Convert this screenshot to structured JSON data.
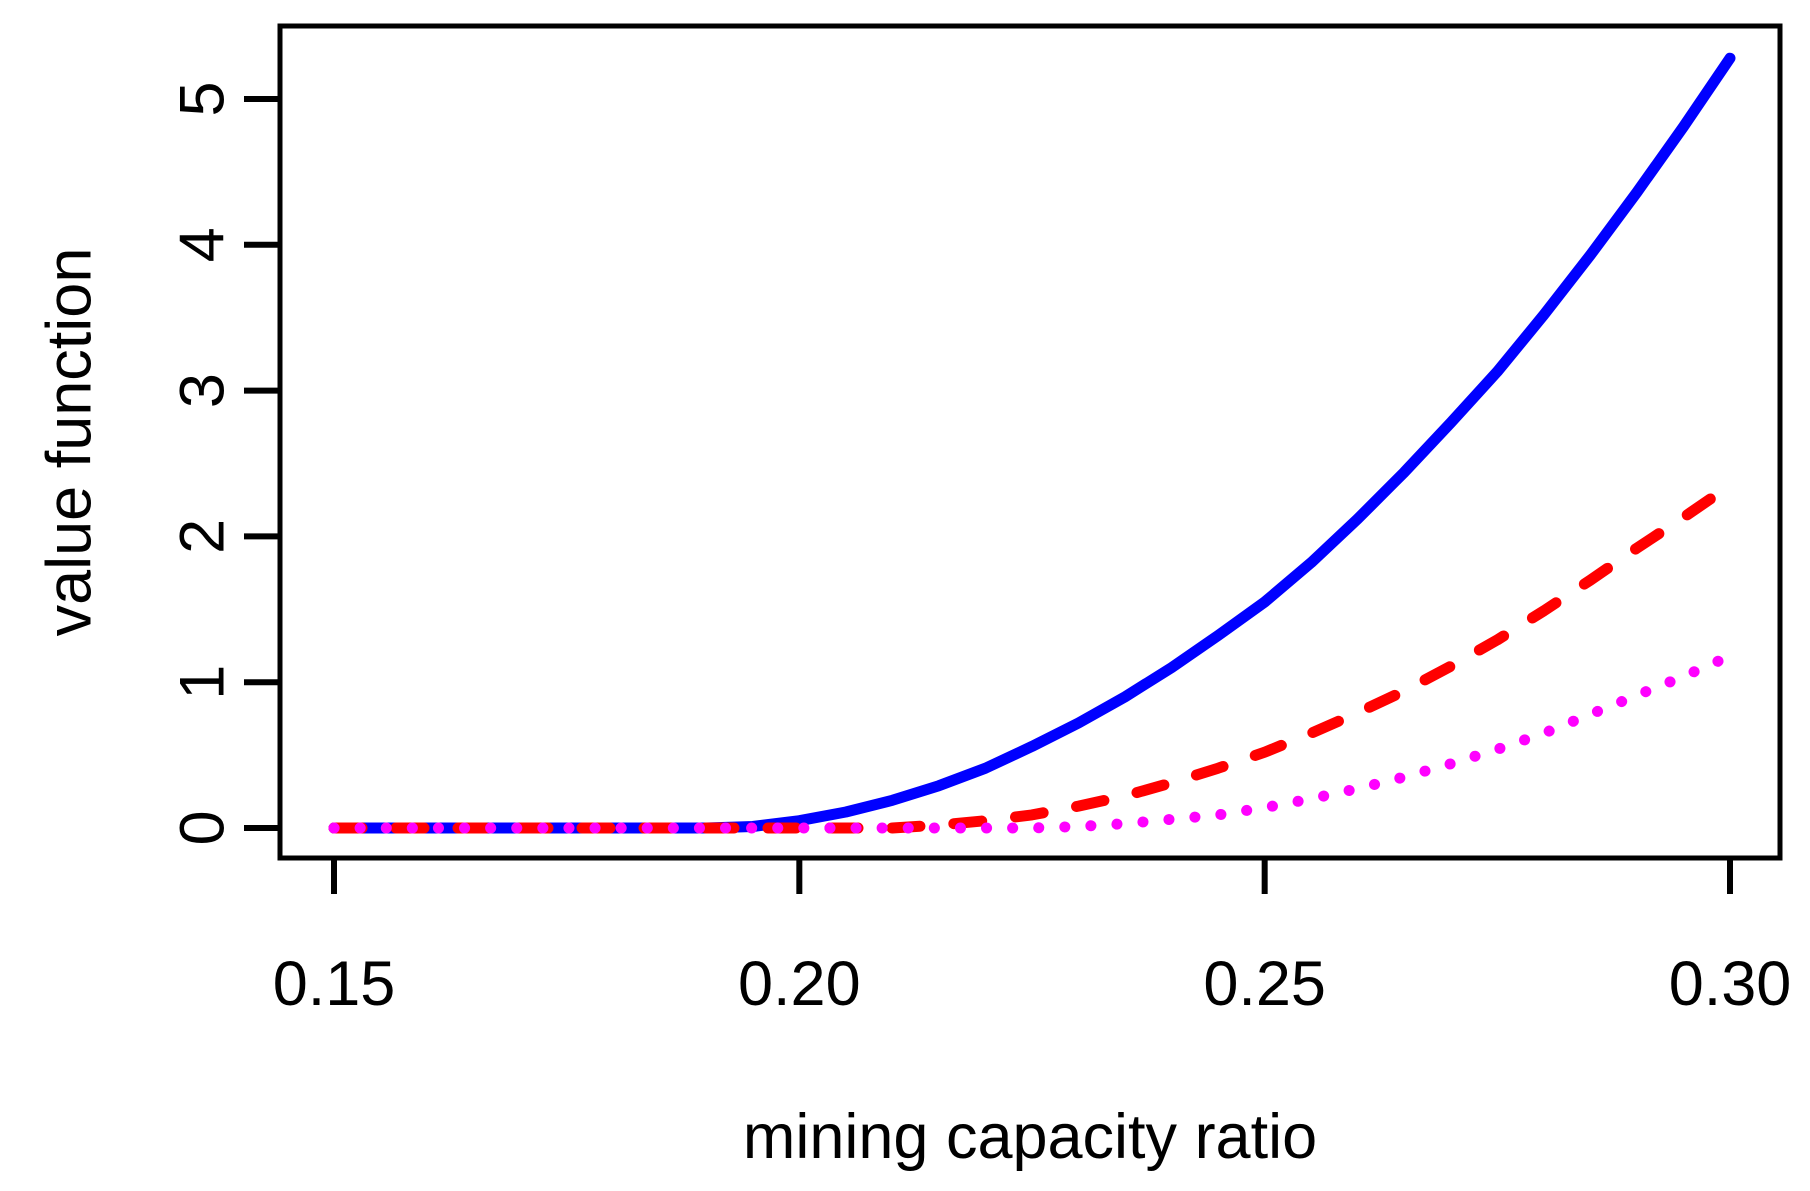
{
  "figure": {
    "background_color": "#FFFFFF",
    "frame_color": "#000000"
  },
  "chart_data": {
    "type": "line",
    "title": "",
    "xlabel": "mining capacity ratio",
    "ylabel": "value function",
    "x_tick_labels": [
      "0.15",
      "0.20",
      "0.25",
      "0.30"
    ],
    "x_tick_values": [
      0.15,
      0.2,
      0.25,
      0.3
    ],
    "y_tick_labels": [
      "0",
      "1",
      "2",
      "3",
      "4",
      "5"
    ],
    "y_tick_values": [
      0,
      1,
      2,
      3,
      4,
      5
    ],
    "xlim": [
      0.144,
      0.306
    ],
    "ylim": [
      -0.21,
      5.5
    ],
    "grid": false,
    "legend": "none",
    "frame": true,
    "x": [
      0.15,
      0.155,
      0.16,
      0.165,
      0.17,
      0.175,
      0.18,
      0.185,
      0.19,
      0.195,
      0.2,
      0.205,
      0.21,
      0.215,
      0.22,
      0.225,
      0.23,
      0.235,
      0.24,
      0.245,
      0.25,
      0.255,
      0.26,
      0.265,
      0.27,
      0.275,
      0.28,
      0.285,
      0.29,
      0.295,
      0.3
    ],
    "series": [
      {
        "name": "blue-solid",
        "color": "#0000FF",
        "line_style": "solid",
        "line_width": 11,
        "values": [
          0,
          0,
          0,
          0,
          0,
          0,
          0,
          0,
          0,
          0.01,
          0.05,
          0.11,
          0.19,
          0.29,
          0.41,
          0.56,
          0.72,
          0.9,
          1.1,
          1.32,
          1.55,
          1.82,
          2.12,
          2.44,
          2.78,
          3.13,
          3.52,
          3.93,
          4.36,
          4.81,
          5.28
        ]
      },
      {
        "name": "red-dashed",
        "color": "#FF0000",
        "line_style": "dashed",
        "line_width": 11,
        "values": [
          0,
          0,
          0,
          0,
          0,
          0,
          0,
          0,
          0,
          0,
          0,
          0,
          0,
          0.02,
          0.05,
          0.09,
          0.15,
          0.22,
          0.31,
          0.41,
          0.52,
          0.65,
          0.79,
          0.94,
          1.11,
          1.29,
          1.49,
          1.7,
          1.92,
          2.13,
          2.35
        ]
      },
      {
        "name": "magenta-dotted",
        "color": "#FF00FF",
        "line_style": "dotted",
        "line_width": 11,
        "values": [
          0,
          0,
          0,
          0,
          0,
          0,
          0,
          0,
          0,
          0,
          0,
          0,
          0,
          0,
          0,
          0,
          0.01,
          0.03,
          0.06,
          0.09,
          0.14,
          0.2,
          0.27,
          0.35,
          0.44,
          0.54,
          0.65,
          0.78,
          0.91,
          1.04,
          1.18
        ]
      }
    ]
  }
}
